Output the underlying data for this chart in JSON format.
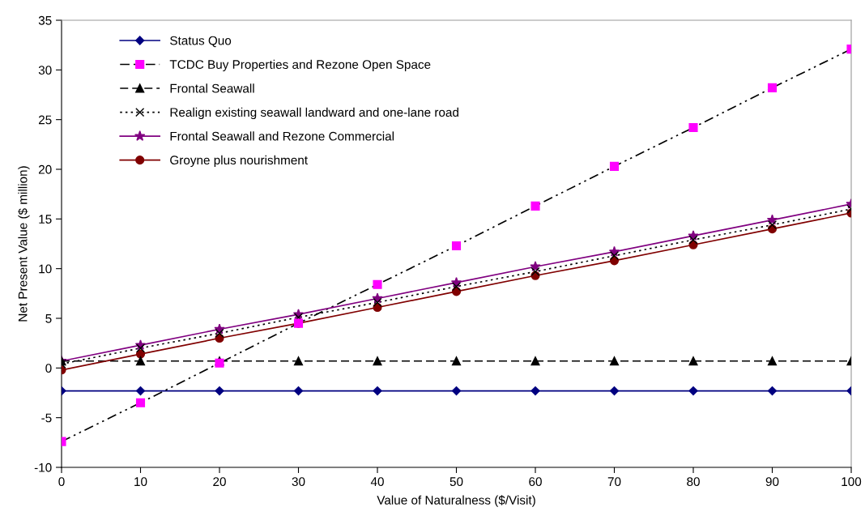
{
  "chart_data": {
    "type": "line",
    "xlabel": "Value of Naturalness ($/Visit)",
    "ylabel": "Net Present Value ($ million)",
    "x": [
      0,
      10,
      20,
      30,
      40,
      50,
      60,
      70,
      80,
      90,
      100
    ],
    "xlim": [
      0,
      100
    ],
    "xticks": [
      0,
      10,
      20,
      30,
      40,
      50,
      60,
      70,
      80,
      90,
      100
    ],
    "ylim": [
      -10,
      35
    ],
    "yticks": [
      -10,
      -5,
      0,
      5,
      10,
      15,
      20,
      25,
      30,
      35
    ],
    "grid": false,
    "legend": "top left",
    "series": [
      {
        "name": "Status Quo",
        "color": "#000080",
        "marker": "diamond",
        "line_style": "solid",
        "values": [
          -2.3,
          -2.3,
          -2.3,
          -2.3,
          -2.3,
          -2.3,
          -2.3,
          -2.3,
          -2.3,
          -2.3,
          -2.3
        ]
      },
      {
        "name": "TCDC Buy Properties and Rezone Open Space",
        "color": "#ff00ff",
        "marker": "square",
        "line_style": "dashdotdot",
        "values": [
          -7.4,
          -3.5,
          0.5,
          4.5,
          8.4,
          12.3,
          16.3,
          20.3,
          24.2,
          28.2,
          32.1
        ]
      },
      {
        "name": "Frontal Seawall",
        "color": "#000000",
        "marker": "triangle",
        "line_style": "dashed",
        "values": [
          0.7,
          0.7,
          0.7,
          0.7,
          0.7,
          0.7,
          0.7,
          0.7,
          0.7,
          0.7,
          0.7
        ]
      },
      {
        "name": "Realign existing seawall landward and one-lane road",
        "color": "#000000",
        "marker": "cross",
        "line_style": "dotted",
        "values": [
          0.4,
          2.0,
          3.5,
          5.1,
          6.6,
          8.2,
          9.7,
          11.3,
          12.9,
          14.4,
          16.0
        ]
      },
      {
        "name": "Frontal Seawall and Rezone Commercial",
        "color": "#800080",
        "marker": "star",
        "line_style": "solid",
        "values": [
          0.7,
          2.3,
          3.9,
          5.4,
          7.0,
          8.6,
          10.2,
          11.7,
          13.3,
          14.9,
          16.5
        ]
      },
      {
        "name": "Groyne plus nourishment",
        "color": "#800000",
        "marker": "circle",
        "line_style": "solid",
        "values": [
          -0.2,
          1.4,
          3.0,
          4.5,
          6.1,
          7.7,
          9.3,
          10.8,
          12.4,
          14.0,
          15.6
        ]
      }
    ]
  }
}
